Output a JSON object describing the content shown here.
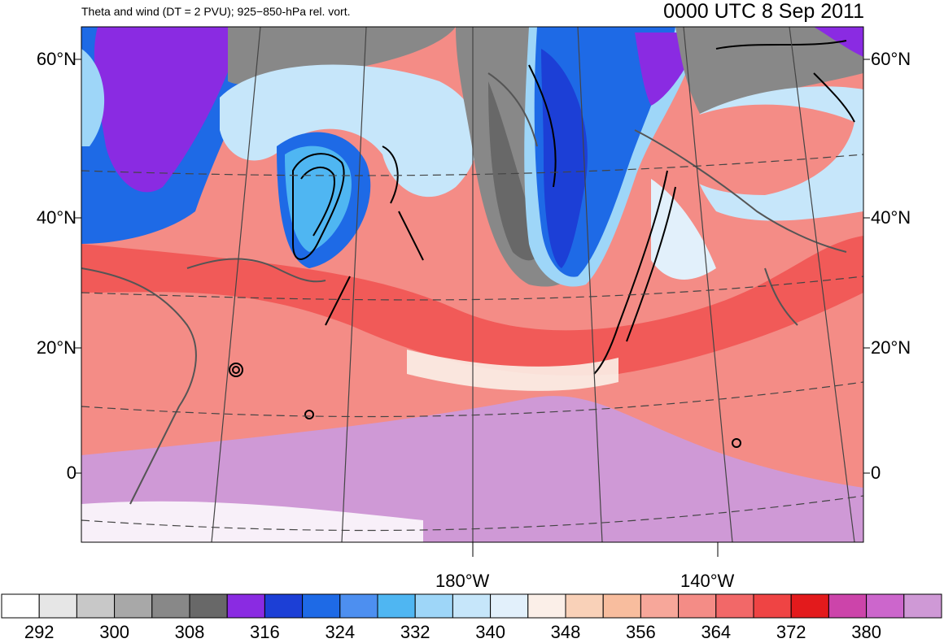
{
  "header": {
    "title": "Theta and wind (DT = 2 PVU); 925−850-hPa rel. vort.",
    "valid_time": "0000 UTC 8 Sep 2011"
  },
  "axes": {
    "lat_labels": [
      "60°N",
      "40°N",
      "20°N",
      "0"
    ],
    "lon_labels": [
      "180°W",
      "140°W"
    ]
  },
  "colorbar": {
    "colors": [
      "#ffffff",
      "#e6e6e6",
      "#c8c8c8",
      "#a8a8a8",
      "#888888",
      "#686868",
      "#8a2be2",
      "#1c3fd6",
      "#1e6ae6",
      "#4d8ff0",
      "#4fb6f2",
      "#9ed6f8",
      "#c6e6fa",
      "#e2f0fb",
      "#fbefe8",
      "#f9d1b8",
      "#f8bd9e",
      "#f7a79a",
      "#f48c86",
      "#f26868",
      "#ef4444",
      "#e31a1c",
      "#cc44aa",
      "#cc66cc",
      "#cf99d6"
    ],
    "labels": [
      "292",
      "300",
      "308",
      "316",
      "324",
      "332",
      "340",
      "348",
      "356",
      "364",
      "372",
      "380"
    ]
  },
  "legend_colors": {
    "coast": "#555555",
    "grid": "#444444",
    "contour": "#000000"
  }
}
